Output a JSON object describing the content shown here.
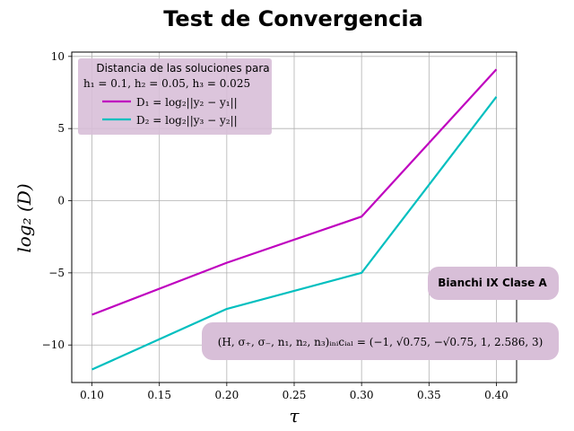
{
  "chart_data": {
    "type": "line",
    "title": "Test de Convergencia",
    "xlabel": "τ",
    "ylabel": "log₂ (D)",
    "x": [
      0.1,
      0.2,
      0.3,
      0.4
    ],
    "xlim": [
      0.085,
      0.415
    ],
    "ylim": [
      -12.6,
      10.3
    ],
    "xticks": [
      0.1,
      0.15,
      0.2,
      0.25,
      0.3,
      0.35,
      0.4
    ],
    "yticks": [
      -10,
      -5,
      0,
      5,
      10
    ],
    "xtick_labels": [
      "0.10",
      "0.15",
      "0.20",
      "0.25",
      "0.30",
      "0.35",
      "0.40"
    ],
    "ytick_labels": [
      "−10",
      "−5",
      "0",
      "5",
      "10"
    ],
    "grid": true,
    "legend": {
      "placement": "top-left",
      "title_line1": "Distancia de las soluciones para",
      "title_line2": "h₁ = 0.1, h₂ = 0.05, h₃ = 0.025"
    },
    "series": [
      {
        "name": "D₁ = log₂||y₂ − y₁||",
        "color": "#bf00bf",
        "values": [
          -7.9,
          -4.3,
          -1.1,
          9.1
        ]
      },
      {
        "name": "D₂ = log₂||y₃ − y₂||",
        "color": "#00bfbf",
        "values": [
          -11.7,
          -7.5,
          -5.0,
          7.2
        ]
      }
    ],
    "annotations": [
      {
        "text": "Bianchi IX Clase A"
      },
      {
        "text": "(H, σ₊, σ₋, n₁, n₂, n₃)ᵢₙᵢcᵢₐₗ = (−1, √0.75, −√0.75, 1, 2.586, 3)"
      }
    ]
  }
}
